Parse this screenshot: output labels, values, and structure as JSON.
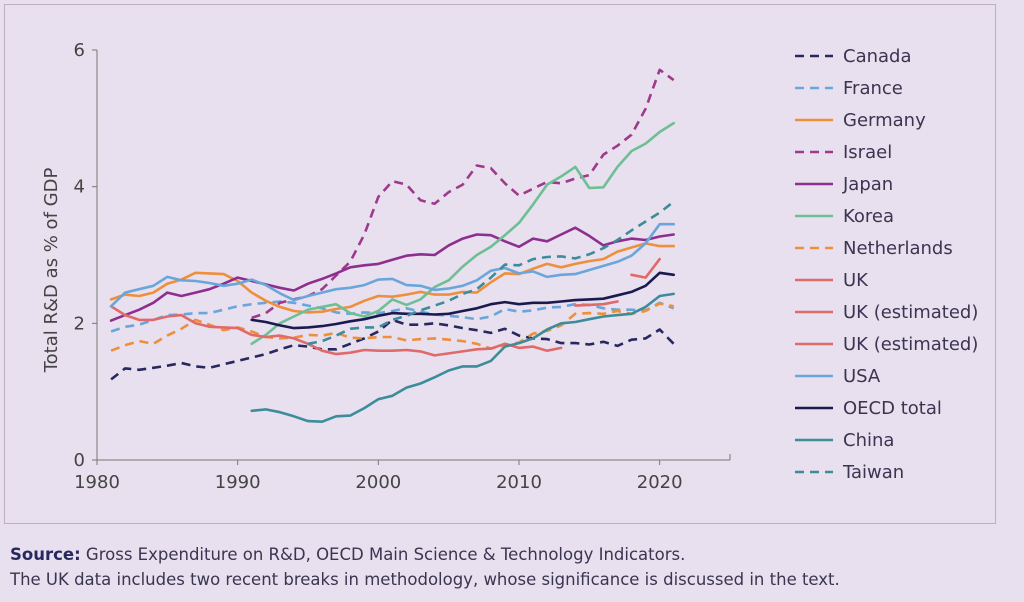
{
  "chart_data": {
    "type": "line",
    "title": "",
    "xlabel": "",
    "ylabel": "Total R&D as % of GDP",
    "xlim": [
      1980,
      2025
    ],
    "ylim": [
      0,
      6
    ],
    "xticks": [
      1980,
      1990,
      2000,
      2010,
      2020
    ],
    "yticks": [
      0,
      2,
      4,
      6
    ],
    "grid": false,
    "legend_position": "right",
    "series": [
      {
        "name": "Canada",
        "color": "#27285f",
        "dash": true,
        "x": [
          1981,
          1982,
          1983,
          1984,
          1985,
          1986,
          1987,
          1988,
          1989,
          1990,
          1991,
          1992,
          1993,
          1994,
          1995,
          1996,
          1997,
          1998,
          1999,
          2000,
          2001,
          2002,
          2003,
          2004,
          2005,
          2006,
          2007,
          2008,
          2009,
          2010,
          2011,
          2012,
          2013,
          2014,
          2015,
          2016,
          2017,
          2018,
          2019,
          2020,
          2021
        ],
        "y": [
          1.18,
          1.34,
          1.32,
          1.35,
          1.38,
          1.42,
          1.37,
          1.35,
          1.4,
          1.45,
          1.5,
          1.55,
          1.62,
          1.68,
          1.66,
          1.62,
          1.62,
          1.7,
          1.78,
          1.88,
          2.05,
          1.98,
          1.98,
          2.0,
          1.97,
          1.93,
          1.9,
          1.86,
          1.92,
          1.82,
          1.78,
          1.77,
          1.71,
          1.71,
          1.69,
          1.73,
          1.67,
          1.76,
          1.78,
          1.91,
          1.7
        ]
      },
      {
        "name": "France",
        "color": "#6aa6dc",
        "dash": true,
        "x": [
          1981,
          1982,
          1983,
          1984,
          1985,
          1986,
          1987,
          1988,
          1989,
          1990,
          1991,
          1992,
          1993,
          1994,
          1995,
          1996,
          1997,
          1998,
          1999,
          2000,
          2001,
          2002,
          2003,
          2004,
          2005,
          2006,
          2007,
          2008,
          2009,
          2010,
          2011,
          2012,
          2013,
          2014,
          2015,
          2016,
          2017,
          2018,
          2019,
          2020,
          2021
        ],
        "y": [
          1.88,
          1.95,
          1.98,
          2.05,
          2.12,
          2.13,
          2.15,
          2.15,
          2.2,
          2.25,
          2.28,
          2.3,
          2.32,
          2.3,
          2.26,
          2.22,
          2.16,
          2.14,
          2.16,
          2.15,
          2.18,
          2.22,
          2.17,
          2.13,
          2.11,
          2.09,
          2.06,
          2.1,
          2.21,
          2.17,
          2.19,
          2.23,
          2.24,
          2.28,
          2.27,
          2.22,
          2.2,
          2.2,
          2.19,
          2.3,
          2.22
        ]
      },
      {
        "name": "Germany",
        "color": "#ee8f3c",
        "dash": false,
        "x": [
          1981,
          1982,
          1983,
          1984,
          1985,
          1986,
          1987,
          1988,
          1989,
          1990,
          1991,
          1992,
          1993,
          1994,
          1995,
          1996,
          1997,
          1998,
          1999,
          2000,
          2001,
          2002,
          2003,
          2004,
          2005,
          2006,
          2007,
          2008,
          2009,
          2010,
          2011,
          2012,
          2013,
          2014,
          2015,
          2016,
          2017,
          2018,
          2019,
          2020,
          2021
        ],
        "y": [
          2.35,
          2.42,
          2.4,
          2.45,
          2.58,
          2.64,
          2.74,
          2.73,
          2.72,
          2.62,
          2.45,
          2.33,
          2.24,
          2.18,
          2.16,
          2.17,
          2.21,
          2.24,
          2.33,
          2.4,
          2.39,
          2.42,
          2.46,
          2.42,
          2.42,
          2.46,
          2.45,
          2.6,
          2.73,
          2.72,
          2.8,
          2.87,
          2.82,
          2.87,
          2.91,
          2.94,
          3.05,
          3.11,
          3.17,
          3.13,
          3.13
        ]
      },
      {
        "name": "Israel",
        "color": "#9e3a8c",
        "dash": true,
        "x": [
          1991,
          1992,
          1993,
          1994,
          1995,
          1996,
          1997,
          1998,
          1999,
          2000,
          2001,
          2002,
          2003,
          2004,
          2005,
          2006,
          2007,
          2008,
          2009,
          2010,
          2011,
          2012,
          2013,
          2014,
          2015,
          2016,
          2017,
          2018,
          2019,
          2020,
          2021
        ],
        "y": [
          2.08,
          2.15,
          2.3,
          2.35,
          2.4,
          2.5,
          2.7,
          2.9,
          3.3,
          3.85,
          4.08,
          4.03,
          3.8,
          3.75,
          3.92,
          4.03,
          4.31,
          4.27,
          4.05,
          3.87,
          3.97,
          4.07,
          4.05,
          4.12,
          4.17,
          4.47,
          4.6,
          4.76,
          5.14,
          5.71,
          5.56
        ]
      },
      {
        "name": "Japan",
        "color": "#8e2e8e",
        "dash": false,
        "x": [
          1981,
          1982,
          1983,
          1984,
          1985,
          1986,
          1987,
          1988,
          1989,
          1990,
          1991,
          1992,
          1993,
          1994,
          1995,
          1996,
          1997,
          1998,
          1999,
          2000,
          2001,
          2002,
          2003,
          2004,
          2005,
          2006,
          2007,
          2008,
          2009,
          2010,
          2011,
          2012,
          2013,
          2014,
          2015,
          2016,
          2017,
          2018,
          2019,
          2020,
          2021
        ],
        "y": [
          2.04,
          2.12,
          2.2,
          2.3,
          2.45,
          2.4,
          2.45,
          2.5,
          2.58,
          2.67,
          2.62,
          2.57,
          2.52,
          2.48,
          2.58,
          2.65,
          2.73,
          2.82,
          2.85,
          2.87,
          2.93,
          2.99,
          3.01,
          3.0,
          3.14,
          3.24,
          3.3,
          3.29,
          3.2,
          3.12,
          3.24,
          3.2,
          3.3,
          3.4,
          3.28,
          3.14,
          3.2,
          3.24,
          3.22,
          3.27,
          3.3
        ]
      },
      {
        "name": "Korea",
        "color": "#6ebf94",
        "dash": false,
        "x": [
          1991,
          1992,
          1993,
          1994,
          1995,
          1996,
          1997,
          1998,
          1999,
          2000,
          2001,
          2002,
          2003,
          2004,
          2005,
          2006,
          2007,
          2008,
          2009,
          2010,
          2011,
          2012,
          2013,
          2014,
          2015,
          2016,
          2017,
          2018,
          2019,
          2020,
          2021
        ],
        "y": [
          1.7,
          1.83,
          2.0,
          2.1,
          2.2,
          2.24,
          2.28,
          2.15,
          2.1,
          2.18,
          2.35,
          2.27,
          2.35,
          2.53,
          2.63,
          2.83,
          3.0,
          3.12,
          3.29,
          3.47,
          3.74,
          4.03,
          4.15,
          4.29,
          3.98,
          3.99,
          4.29,
          4.52,
          4.63,
          4.8,
          4.93
        ]
      },
      {
        "name": "Netherlands",
        "color": "#ee8f3c",
        "dash": true,
        "x": [
          1981,
          1982,
          1983,
          1984,
          1985,
          1986,
          1987,
          1988,
          1989,
          1990,
          1991,
          1992,
          1993,
          1994,
          1995,
          1996,
          1997,
          1998,
          1999,
          2000,
          2001,
          2002,
          2003,
          2004,
          2005,
          2006,
          2007,
          2008,
          2009,
          2010,
          2011,
          2012,
          2013,
          2014,
          2015,
          2016,
          2017,
          2018,
          2019,
          2020,
          2021
        ],
        "y": [
          1.6,
          1.68,
          1.74,
          1.7,
          1.82,
          1.92,
          2.05,
          1.98,
          1.9,
          1.94,
          1.88,
          1.8,
          1.78,
          1.79,
          1.83,
          1.82,
          1.86,
          1.79,
          1.78,
          1.8,
          1.8,
          1.75,
          1.77,
          1.78,
          1.76,
          1.74,
          1.7,
          1.63,
          1.68,
          1.72,
          1.85,
          1.89,
          1.97,
          2.14,
          2.15,
          2.14,
          2.18,
          2.14,
          2.18,
          2.29,
          2.25
        ]
      },
      {
        "name": "UK",
        "color": "#e06a6a",
        "dash": false,
        "x": [
          1981,
          1982,
          1983,
          1984,
          1985,
          1986,
          1987,
          1988,
          1989,
          1990,
          1991,
          1992,
          1993,
          1994,
          1995,
          1996,
          1997,
          1998,
          1999,
          2000,
          2001,
          2002,
          2003,
          2004,
          2005,
          2006,
          2007,
          2008,
          2009,
          2010,
          2011,
          2012,
          2013
        ],
        "y": [
          2.25,
          2.12,
          2.05,
          2.05,
          2.1,
          2.12,
          2.0,
          1.95,
          1.94,
          1.93,
          1.83,
          1.8,
          1.82,
          1.78,
          1.7,
          1.6,
          1.55,
          1.57,
          1.61,
          1.6,
          1.6,
          1.61,
          1.59,
          1.53,
          1.56,
          1.59,
          1.62,
          1.63,
          1.7,
          1.64,
          1.66,
          1.6,
          1.64
        ]
      },
      {
        "name": "UK (estimated)",
        "color": "#e06a6a",
        "dash": false,
        "x": [
          2014,
          2015,
          2016,
          2017
        ],
        "y": [
          2.26,
          2.27,
          2.28,
          2.32
        ]
      },
      {
        "name": "UK (estimated)",
        "color": "#e06a6a",
        "dash": false,
        "x": [
          2018,
          2019,
          2020
        ],
        "y": [
          2.71,
          2.67,
          2.94
        ]
      },
      {
        "name": "USA",
        "color": "#6aa6dc",
        "dash": false,
        "x": [
          1981,
          1982,
          1983,
          1984,
          1985,
          1986,
          1987,
          1988,
          1989,
          1990,
          1991,
          1992,
          1993,
          1994,
          1995,
          1996,
          1997,
          1998,
          1999,
          2000,
          2001,
          2002,
          2003,
          2004,
          2005,
          2006,
          2007,
          2008,
          2009,
          2010,
          2011,
          2012,
          2013,
          2014,
          2015,
          2016,
          2017,
          2018,
          2019,
          2020,
          2021
        ],
        "y": [
          2.25,
          2.45,
          2.5,
          2.55,
          2.68,
          2.63,
          2.62,
          2.59,
          2.55,
          2.58,
          2.64,
          2.56,
          2.44,
          2.34,
          2.4,
          2.45,
          2.5,
          2.52,
          2.56,
          2.64,
          2.65,
          2.56,
          2.55,
          2.49,
          2.51,
          2.55,
          2.63,
          2.77,
          2.81,
          2.73,
          2.76,
          2.68,
          2.71,
          2.72,
          2.78,
          2.84,
          2.9,
          2.99,
          3.17,
          3.45,
          3.45
        ]
      },
      {
        "name": "OECD total",
        "color": "#1a1a4e",
        "dash": false,
        "x": [
          1991,
          1992,
          1993,
          1994,
          1995,
          1996,
          1997,
          1998,
          1999,
          2000,
          2001,
          2002,
          2003,
          2004,
          2005,
          2006,
          2007,
          2008,
          2009,
          2010,
          2011,
          2012,
          2013,
          2014,
          2015,
          2016,
          2017,
          2018,
          2019,
          2020,
          2021
        ],
        "y": [
          2.05,
          2.02,
          1.97,
          1.93,
          1.94,
          1.96,
          1.99,
          2.03,
          2.06,
          2.11,
          2.15,
          2.14,
          2.14,
          2.13,
          2.14,
          2.18,
          2.22,
          2.28,
          2.31,
          2.28,
          2.3,
          2.3,
          2.32,
          2.34,
          2.35,
          2.36,
          2.41,
          2.46,
          2.55,
          2.74,
          2.71
        ]
      },
      {
        "name": "China",
        "color": "#3c8c9a",
        "dash": false,
        "x": [
          1991,
          1992,
          1993,
          1994,
          1995,
          1996,
          1997,
          1998,
          1999,
          2000,
          2001,
          2002,
          2003,
          2004,
          2005,
          2006,
          2007,
          2008,
          2009,
          2010,
          2011,
          2012,
          2013,
          2014,
          2015,
          2016,
          2017,
          2018,
          2019,
          2020,
          2021
        ],
        "y": [
          0.72,
          0.74,
          0.7,
          0.64,
          0.57,
          0.56,
          0.64,
          0.65,
          0.76,
          0.89,
          0.94,
          1.06,
          1.12,
          1.21,
          1.31,
          1.37,
          1.37,
          1.45,
          1.66,
          1.71,
          1.78,
          1.91,
          2.0,
          2.02,
          2.06,
          2.1,
          2.12,
          2.14,
          2.24,
          2.4,
          2.43
        ]
      },
      {
        "name": "Taiwan",
        "color": "#3c8c9a",
        "dash": true,
        "x": [
          1995,
          1996,
          1997,
          1998,
          1999,
          2000,
          2001,
          2002,
          2003,
          2004,
          2005,
          2006,
          2007,
          2008,
          2009,
          2010,
          2011,
          2012,
          2013,
          2014,
          2015,
          2016,
          2017,
          2018,
          2019,
          2020,
          2021
        ],
        "y": [
          1.7,
          1.74,
          1.82,
          1.92,
          1.94,
          1.94,
          2.05,
          2.11,
          2.19,
          2.26,
          2.33,
          2.43,
          2.5,
          2.67,
          2.86,
          2.85,
          2.94,
          2.97,
          2.98,
          2.95,
          3.01,
          3.1,
          3.22,
          3.36,
          3.49,
          3.62,
          3.78
        ]
      }
    ]
  },
  "source": {
    "label": "Source:",
    "text": " Gross Expenditure on R&D, OECD Main Science & Technology Indicators.",
    "note": "The UK data includes two recent breaks in methodology, whose significance is discussed in the text."
  }
}
